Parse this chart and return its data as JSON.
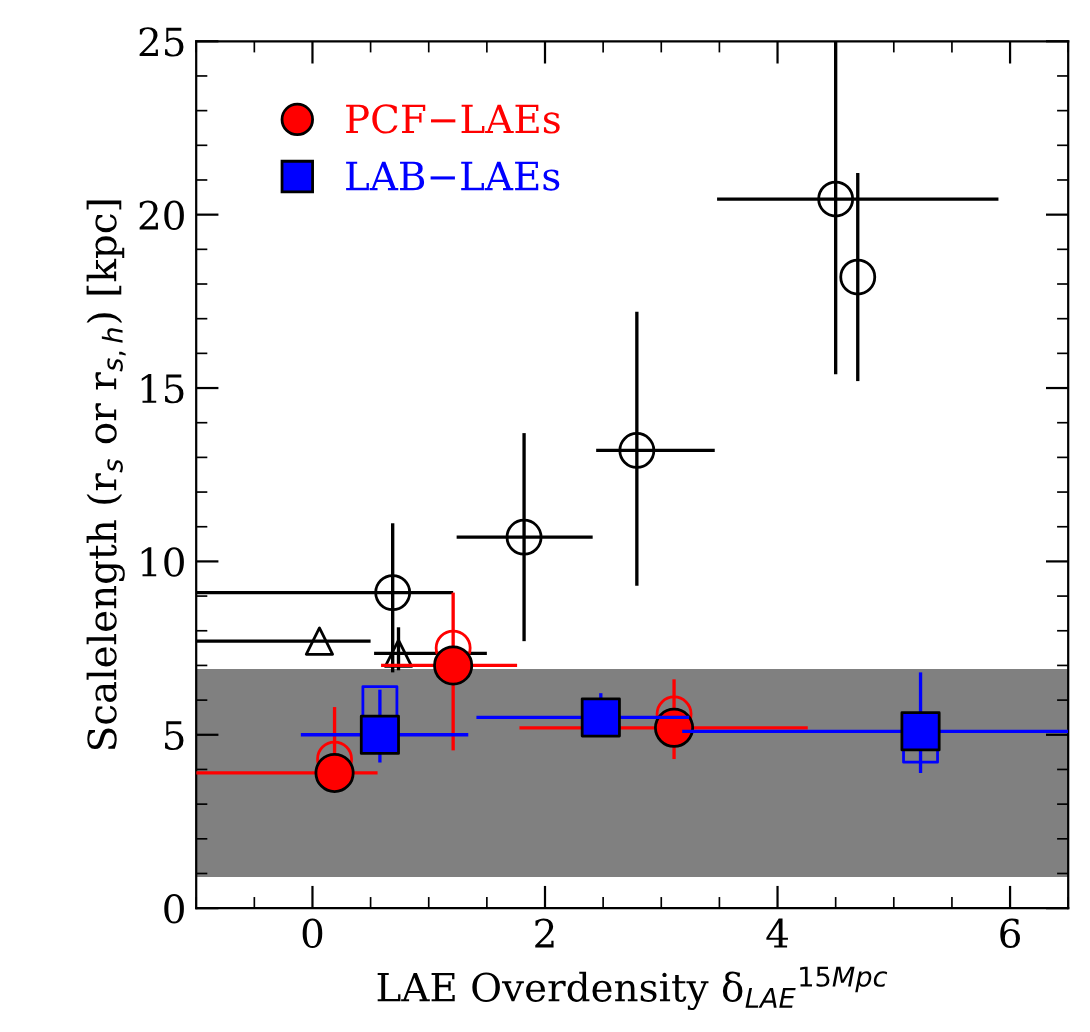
{
  "chart_data": {
    "type": "scatter",
    "xlabel": "LAE Overdensity δ$_{LAE}$$^{15Mpc}$",
    "ylabel": "Scalelength (r$_{s}$ or r$_{s,h}$) [kpc]",
    "xlim": [
      -1,
      6.5
    ],
    "ylim": [
      0,
      25
    ],
    "xticks": [
      0,
      2,
      4,
      6
    ],
    "yticks": [
      0,
      5,
      10,
      15,
      20,
      25
    ],
    "grid": false,
    "legend": "top left",
    "bands": [
      {
        "axis": "y",
        "from": 0.9,
        "to": 6.9,
        "color": "#808080"
      }
    ],
    "series": [
      {
        "color": "#000000",
        "marker": "circle",
        "x": [
          4.5,
          4.69,
          2.79,
          1.82,
          0.69
        ],
        "values": [
          20.45,
          18.2,
          13.2,
          10.7,
          9.1
        ],
        "errors": [
          [
            15.4,
            25
          ],
          [
            15.2,
            21.2
          ],
          [
            9.3,
            17.2
          ],
          [
            7.7,
            13.7
          ],
          [
            6.8,
            11.1
          ]
        ],
        "xerrors": [
          [
            3.48,
            5.9
          ],
          null,
          [
            2.44,
            3.46
          ],
          [
            1.24,
            2.41
          ],
          [
            -1,
            1.21
          ]
        ]
      },
      {
        "color": "#000000",
        "marker": "triangle",
        "x": [
          0.06,
          0.74
        ],
        "values": [
          7.7,
          7.35
        ],
        "errors": [
          null,
          [
            6.86,
            8.1
          ]
        ],
        "xerrors": [
          [
            -1,
            0.5
          ],
          [
            0.53,
            1.5
          ]
        ]
      },
      {
        "color": "#ff0000",
        "marker": "circle",
        "x": [
          0.19,
          1.21,
          3.11
        ],
        "values": [
          4.3,
          7.5,
          5.6
        ]
      },
      {
        "color": "#0000ff",
        "marker": "square",
        "x": [
          0.58,
          2.48,
          5.23
        ],
        "values": [
          5.9,
          null,
          4.7
        ]
      },
      {
        "name": "PCF−LAEs",
        "color": "#ff0000",
        "marker": "circle",
        "x": [
          0.19,
          1.21,
          3.11
        ],
        "values": [
          3.9,
          7.0,
          5.2
        ],
        "errors": [
          [
            3.4,
            5.8
          ],
          [
            4.55,
            9.1
          ],
          [
            4.3,
            6.6
          ]
        ],
        "xerrors": [
          [
            -1,
            0.56
          ],
          [
            0.59,
            1.76
          ],
          [
            1.78,
            4.26
          ]
        ]
      },
      {
        "name": "LAB−LAEs",
        "color": "#0000ff",
        "marker": "square",
        "x": [
          0.58,
          2.48,
          5.23
        ],
        "values": [
          5.0,
          5.5,
          5.1
        ],
        "errors": [
          [
            4.2,
            6.3
          ],
          [
            5.5,
            6.2
          ],
          [
            3.9,
            6.8
          ]
        ],
        "xerrors": [
          [
            -0.1,
            1.34
          ],
          [
            1.41,
            3.24
          ],
          [
            3.18,
            6.5
          ]
        ]
      }
    ]
  }
}
